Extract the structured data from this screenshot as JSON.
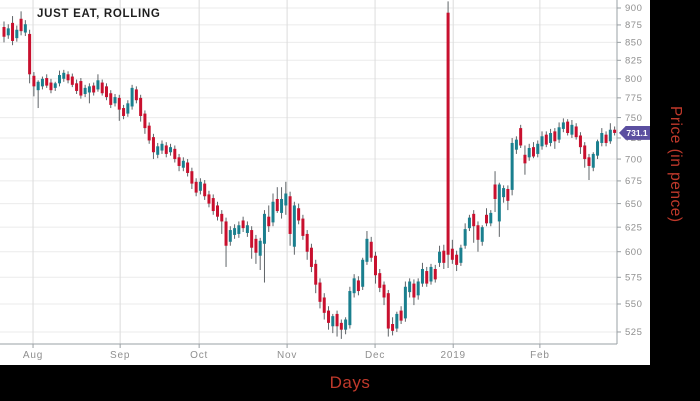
{
  "chart_data": {
    "type": "candlestick",
    "title": "JUST EAT, ROLLING",
    "xlabel": "Days",
    "ylabel": "Price (in pence)",
    "legend": null,
    "grid": true,
    "y_axis": {
      "scale": "log",
      "ticks": [
        900,
        875,
        850,
        825,
        800,
        775,
        750,
        725,
        700,
        675,
        650,
        625,
        600,
        575,
        550,
        525
      ],
      "unit": "pence"
    },
    "x_ticks": [
      {
        "label": "Aug",
        "index": 6.8
      },
      {
        "label": "Sep",
        "index": 27.2
      },
      {
        "label": "Oct",
        "index": 45.7
      },
      {
        "label": "Nov",
        "index": 66.3
      },
      {
        "label": "Dec",
        "index": 86.9
      },
      {
        "label": "2019",
        "index": 105.2
      },
      {
        "label": "Feb",
        "index": 125.5
      }
    ],
    "last_price": 731.1,
    "last_price_label": "731.1",
    "colors": {
      "up": "#1a7f8e",
      "down": "#c8102e",
      "wick": "#5f6468",
      "marker": "#5b4fa0",
      "axis_title": "#c0392b",
      "tick_label": "#8f8f8f",
      "grid_h": "#ebebeb",
      "grid_v": "#dcdcdc",
      "axis_line": "#9aa0a4",
      "title": "#1f1f1f"
    },
    "candles_format": [
      "open",
      "high",
      "low",
      "close"
    ],
    "candles": [
      [
        872,
        880,
        850,
        858
      ],
      [
        860,
        876,
        855,
        870
      ],
      [
        878,
        888,
        846,
        852
      ],
      [
        856,
        874,
        851,
        868
      ],
      [
        884,
        895,
        860,
        866
      ],
      [
        864,
        882,
        859,
        876
      ],
      [
        862,
        868,
        794,
        806
      ],
      [
        804,
        809,
        777,
        790
      ],
      [
        785,
        798,
        762,
        796
      ],
      [
        790,
        803,
        786,
        800
      ],
      [
        801,
        806,
        788,
        791
      ],
      [
        795,
        800,
        781,
        785
      ],
      [
        788,
        796,
        784,
        794
      ],
      [
        794,
        811,
        790,
        805
      ],
      [
        800,
        812,
        796,
        808
      ],
      [
        806,
        810,
        794,
        798
      ],
      [
        803,
        807,
        789,
        792
      ],
      [
        794,
        799,
        780,
        784
      ],
      [
        797,
        801,
        774,
        778
      ],
      [
        780,
        792,
        776,
        788
      ],
      [
        782,
        794,
        768,
        790
      ],
      [
        791,
        795,
        778,
        782
      ],
      [
        786,
        806,
        783,
        798
      ],
      [
        795,
        799,
        778,
        781
      ],
      [
        790,
        794,
        772,
        776
      ],
      [
        781,
        785,
        762,
        766
      ],
      [
        768,
        780,
        764,
        776
      ],
      [
        775,
        779,
        746,
        760
      ],
      [
        762,
        766,
        748,
        752
      ],
      [
        755,
        772,
        751,
        768
      ],
      [
        764,
        792,
        760,
        788
      ],
      [
        786,
        790,
        768,
        772
      ],
      [
        775,
        779,
        745,
        752
      ],
      [
        755,
        759,
        730,
        737
      ],
      [
        740,
        744,
        718,
        722
      ],
      [
        726,
        730,
        700,
        708
      ],
      [
        705,
        719,
        701,
        715
      ],
      [
        710,
        722,
        706,
        718
      ],
      [
        716,
        720,
        702,
        706
      ],
      [
        708,
        718,
        704,
        714
      ],
      [
        712,
        716,
        696,
        700
      ],
      [
        702,
        706,
        686,
        692
      ],
      [
        690,
        702,
        686,
        698
      ],
      [
        696,
        700,
        680,
        684
      ],
      [
        686,
        690,
        666,
        672
      ],
      [
        674,
        678,
        658,
        662
      ],
      [
        664,
        678,
        660,
        674
      ],
      [
        672,
        676,
        654,
        658
      ],
      [
        660,
        664,
        646,
        650
      ],
      [
        656,
        660,
        638,
        642
      ],
      [
        648,
        652,
        632,
        636
      ],
      [
        639,
        643,
        618,
        631
      ],
      [
        631,
        635,
        585,
        606
      ],
      [
        610,
        626,
        606,
        622
      ],
      [
        617,
        628,
        613,
        624
      ],
      [
        618,
        631,
        614,
        627
      ],
      [
        632,
        636,
        620,
        624
      ],
      [
        619,
        631,
        615,
        627
      ],
      [
        622,
        626,
        593,
        604
      ],
      [
        613,
        617,
        588,
        599
      ],
      [
        596,
        614,
        582,
        611
      ],
      [
        608,
        643,
        570,
        639
      ],
      [
        636,
        648,
        620,
        626
      ],
      [
        630,
        661,
        626,
        652
      ],
      [
        655,
        668,
        640,
        642
      ],
      [
        640,
        668,
        634,
        655
      ],
      [
        648,
        674,
        638,
        661
      ],
      [
        658,
        663,
        606,
        618
      ],
      [
        605,
        652,
        597,
        648
      ],
      [
        645,
        650,
        628,
        632
      ],
      [
        634,
        638,
        612,
        616
      ],
      [
        618,
        622,
        592,
        600
      ],
      [
        604,
        608,
        580,
        585
      ],
      [
        588,
        592,
        560,
        568
      ],
      [
        570,
        574,
        546,
        552
      ],
      [
        556,
        560,
        536,
        542
      ],
      [
        544,
        548,
        527,
        533
      ],
      [
        530,
        541,
        524,
        539
      ],
      [
        541,
        544,
        521,
        530
      ],
      [
        533,
        536,
        519,
        527
      ],
      [
        527,
        538,
        523,
        536
      ],
      [
        531,
        566,
        528,
        562
      ],
      [
        560,
        578,
        556,
        574
      ],
      [
        572,
        576,
        558,
        562
      ],
      [
        566,
        594,
        563,
        592
      ],
      [
        590,
        621,
        587,
        613
      ],
      [
        610,
        615,
        590,
        594
      ],
      [
        596,
        600,
        569,
        577
      ],
      [
        579,
        583,
        561,
        565
      ],
      [
        568,
        571,
        549,
        556
      ],
      [
        560,
        563,
        521,
        528
      ],
      [
        532,
        538,
        522,
        526
      ],
      [
        528,
        543,
        525,
        541
      ],
      [
        544,
        548,
        532,
        535
      ],
      [
        537,
        571,
        534,
        566
      ],
      [
        561,
        574,
        556,
        571
      ],
      [
        569,
        573,
        549,
        556
      ],
      [
        558,
        574,
        554,
        571
      ],
      [
        569,
        589,
        566,
        583
      ],
      [
        581,
        585,
        566,
        569
      ],
      [
        571,
        588,
        568,
        585
      ],
      [
        583,
        587,
        570,
        573
      ],
      [
        589,
        606,
        585,
        600
      ],
      [
        601,
        607,
        583,
        589
      ],
      [
        893,
        910,
        584,
        597
      ],
      [
        603,
        612,
        588,
        592
      ],
      [
        597,
        601,
        581,
        587
      ],
      [
        589,
        607,
        586,
        604
      ],
      [
        606,
        629,
        603,
        623
      ],
      [
        624,
        638,
        621,
        635
      ],
      [
        639,
        643,
        609,
        626
      ],
      [
        627,
        631,
        600,
        612
      ],
      [
        610,
        627,
        606,
        625
      ],
      [
        638,
        645,
        626,
        629
      ],
      [
        629,
        643,
        626,
        640
      ],
      [
        671,
        686,
        641,
        655
      ],
      [
        631,
        673,
        615,
        671
      ],
      [
        657,
        670,
        651,
        667
      ],
      [
        666,
        670,
        643,
        653
      ],
      [
        665,
        725,
        659,
        719
      ],
      [
        711,
        727,
        706,
        723
      ],
      [
        737,
        741,
        713,
        716
      ],
      [
        705,
        716,
        682,
        695
      ],
      [
        702,
        718,
        698,
        713
      ],
      [
        714,
        720,
        701,
        703
      ],
      [
        706,
        722,
        702,
        718
      ],
      [
        715,
        733,
        711,
        727
      ],
      [
        729,
        733,
        714,
        717
      ],
      [
        719,
        736,
        715,
        731
      ],
      [
        733,
        737,
        712,
        721
      ],
      [
        723,
        744,
        719,
        738
      ],
      [
        736,
        749,
        732,
        744
      ],
      [
        745,
        748,
        728,
        731
      ],
      [
        729,
        747,
        725,
        741
      ],
      [
        739,
        743,
        723,
        726
      ],
      [
        728,
        732,
        706,
        714
      ],
      [
        716,
        720,
        690,
        700
      ],
      [
        702,
        706,
        676,
        692
      ],
      [
        690,
        708,
        686,
        706
      ],
      [
        704,
        723,
        700,
        721
      ],
      [
        719,
        737,
        715,
        731
      ],
      [
        729,
        733,
        715,
        719
      ],
      [
        721,
        743,
        718,
        735
      ],
      [
        735,
        739,
        728,
        731.1
      ]
    ]
  }
}
